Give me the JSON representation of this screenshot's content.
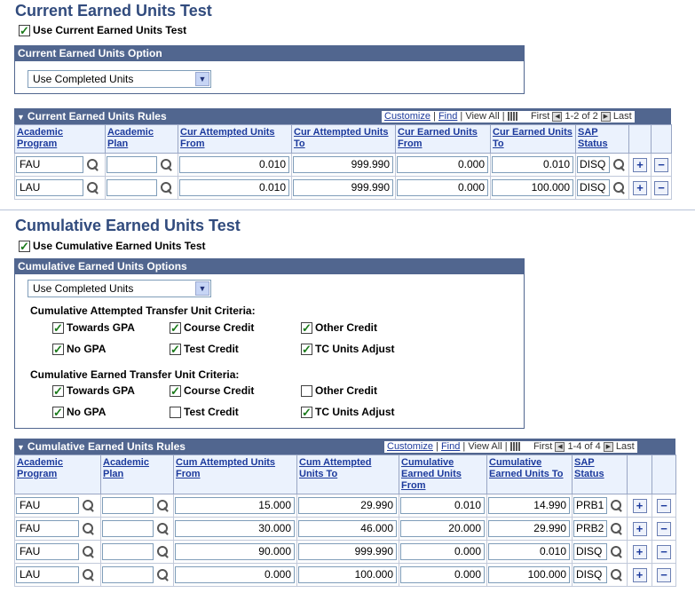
{
  "current": {
    "title": "Current Earned Units Test",
    "use_checkbox_label": "Use Current Earned Units Test",
    "use_checked": true,
    "option_box_title": "Current Earned Units Option",
    "option_value": "Use Completed Units",
    "rules": {
      "title": "Current Earned Units Rules",
      "customize": "Customize",
      "find": "Find",
      "view_all": "View All",
      "first": "First",
      "range": "1-2 of 2",
      "last": "Last",
      "columns": [
        "Academic Program",
        "Academic Plan",
        "Cur Attempted Units From",
        "Cur Attempted Units To",
        "Cur Earned Units From",
        "Cur Earned Units To",
        "SAP Status"
      ],
      "rows": [
        {
          "program": "FAU",
          "plan": "",
          "att_from": "0.010",
          "att_to": "999.990",
          "earn_from": "0.000",
          "earn_to": "0.010",
          "status": "DISQ"
        },
        {
          "program": "LAU",
          "plan": "",
          "att_from": "0.010",
          "att_to": "999.990",
          "earn_from": "0.000",
          "earn_to": "100.000",
          "status": "DISQ"
        }
      ]
    }
  },
  "cumulative": {
    "title": "Cumulative Earned Units Test",
    "use_checkbox_label": "Use Cumulative Earned Units Test",
    "use_checked": true,
    "option_box_title": "Cumulative Earned Units Options",
    "option_value": "Use Completed Units",
    "attempted_label": "Cumulative Attempted Transfer Unit Criteria:",
    "attempted": [
      {
        "label": "Towards GPA",
        "checked": true
      },
      {
        "label": "Course Credit",
        "checked": true
      },
      {
        "label": "Other Credit",
        "checked": true
      },
      {
        "label": "No GPA",
        "checked": true
      },
      {
        "label": "Test Credit",
        "checked": true
      },
      {
        "label": "TC Units Adjust",
        "checked": true
      }
    ],
    "earned_label": "Cumulative Earned Transfer Unit Criteria:",
    "earned": [
      {
        "label": "Towards GPA",
        "checked": true
      },
      {
        "label": "Course Credit",
        "checked": true
      },
      {
        "label": "Other Credit",
        "checked": false
      },
      {
        "label": "No GPA",
        "checked": true
      },
      {
        "label": "Test Credit",
        "checked": false
      },
      {
        "label": "TC Units Adjust",
        "checked": true
      }
    ],
    "rules": {
      "title": "Cumulative Earned Units Rules",
      "customize": "Customize",
      "find": "Find",
      "view_all": "View All",
      "first": "First",
      "range": "1-4 of 4",
      "last": "Last",
      "columns": [
        "Academic Program",
        "Academic Plan",
        "Cum Attempted Units From",
        "Cum Attempted Units To",
        "Cumulative Earned Units From",
        "Cumulative Earned Units To",
        "SAP Status"
      ],
      "rows": [
        {
          "program": "FAU",
          "plan": "",
          "att_from": "15.000",
          "att_to": "29.990",
          "earn_from": "0.010",
          "earn_to": "14.990",
          "status": "PRB1"
        },
        {
          "program": "FAU",
          "plan": "",
          "att_from": "30.000",
          "att_to": "46.000",
          "earn_from": "20.000",
          "earn_to": "29.990",
          "status": "PRB2"
        },
        {
          "program": "FAU",
          "plan": "",
          "att_from": "90.000",
          "att_to": "999.990",
          "earn_from": "0.000",
          "earn_to": "0.010",
          "status": "DISQ"
        },
        {
          "program": "LAU",
          "plan": "",
          "att_from": "0.000",
          "att_to": "100.000",
          "earn_from": "0.000",
          "earn_to": "100.000",
          "status": "DISQ"
        }
      ]
    }
  }
}
